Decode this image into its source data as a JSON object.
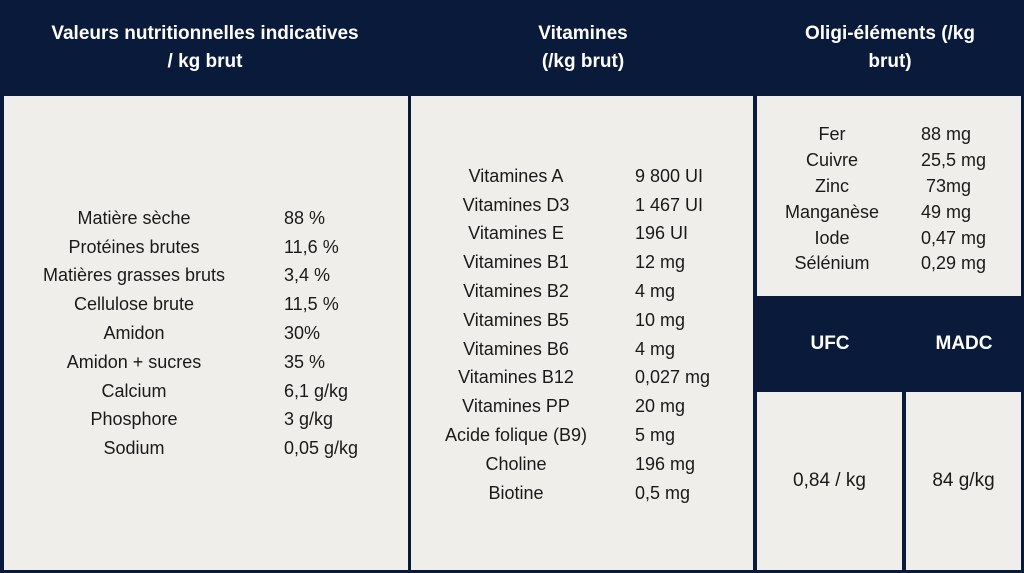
{
  "headers": {
    "nutrition": "Valeurs nutritionnelles indicatives\n/ kg brut",
    "vitamins": "Vitamines\n(/kg brut)",
    "trace": "Oligi-éléments (/kg\nbrut)",
    "ufc": "UFC",
    "madc": "MADC"
  },
  "nutrition": [
    {
      "label": "Matière sèche",
      "value": "88 %"
    },
    {
      "label": "Protéines brutes",
      "value": "11,6 %"
    },
    {
      "label": "Matières grasses bruts",
      "value": "3,4 %"
    },
    {
      "label": "Cellulose brute",
      "value": "11,5 %"
    },
    {
      "label": "Amidon",
      "value": "30%"
    },
    {
      "label": "Amidon + sucres",
      "value": "35 %"
    },
    {
      "label": "Calcium",
      "value": "6,1 g/kg"
    },
    {
      "label": "Phosphore",
      "value": "3 g/kg"
    },
    {
      "label": "Sodium",
      "value": "0,05 g/kg"
    }
  ],
  "vitamins": [
    {
      "label": "Vitamines A",
      "value": "9 800 UI"
    },
    {
      "label": "Vitamines D3",
      "value": "1 467 UI"
    },
    {
      "label": "Vitamines E",
      "value": "196 UI"
    },
    {
      "label": "Vitamines B1",
      "value": "12 mg"
    },
    {
      "label": "Vitamines B2",
      "value": "4 mg"
    },
    {
      "label": "Vitamines B5",
      "value": "10 mg"
    },
    {
      "label": "Vitamines B6",
      "value": "4 mg"
    },
    {
      "label": "Vitamines B12",
      "value": "0,027 mg"
    },
    {
      "label": "Vitamines PP",
      "value": "20 mg"
    },
    {
      "label": "Acide folique (B9)",
      "value": "5 mg"
    },
    {
      "label": "Choline",
      "value": "196 mg"
    },
    {
      "label": "Biotine",
      "value": "0,5 mg"
    }
  ],
  "trace": [
    {
      "label": "Fer",
      "value": "88 mg"
    },
    {
      "label": "Cuivre",
      "value": "25,5 mg"
    },
    {
      "label": "Zinc",
      "value": " 73mg"
    },
    {
      "label": "Manganèse",
      "value": "49 mg"
    },
    {
      "label": "Iode",
      "value": "0,47 mg"
    },
    {
      "label": "Sélénium",
      "value": "0,29 mg"
    }
  ],
  "ufc_value": "0,84 / kg",
  "madc_value": "84 g/kg",
  "colors": {
    "header_bg": "#0a1a3a",
    "cell_bg": "#f0eeea"
  }
}
